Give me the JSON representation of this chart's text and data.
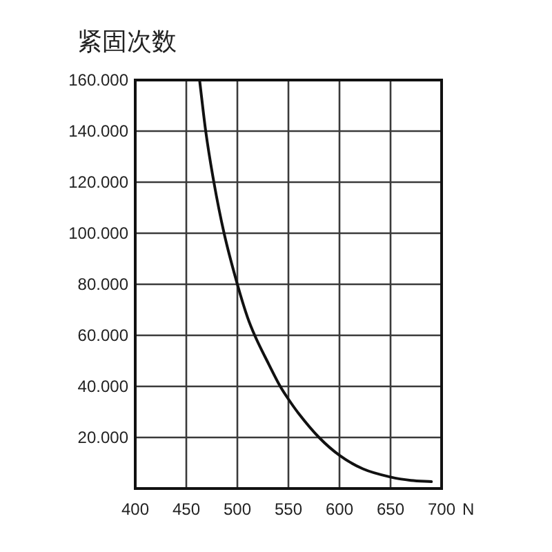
{
  "chart_data": {
    "type": "line",
    "ylabel": "紧固次数",
    "xlabel": "N",
    "x": [
      463,
      469,
      477,
      487,
      500,
      510,
      517,
      531,
      542,
      550,
      560,
      580,
      600,
      623,
      650,
      670,
      690
    ],
    "series": [
      {
        "color": "#111111",
        "values": [
          160000,
          140000,
          120000,
          100000,
          80000,
          67000,
          60000,
          48500,
          40000,
          35000,
          29400,
          20000,
          13000,
          7700,
          4500,
          3200,
          2700
        ]
      }
    ],
    "xlim": [
      400,
      700
    ],
    "xticks": [
      400,
      450,
      500,
      550,
      600,
      650,
      700
    ],
    "ylim": [
      0,
      160000
    ],
    "yticks": [
      {
        "value": 20000,
        "label": "20.000"
      },
      {
        "value": 40000,
        "label": "40.000"
      },
      {
        "value": 60000,
        "label": "60.000"
      },
      {
        "value": 80000,
        "label": "80.000"
      },
      {
        "value": 100000,
        "label": "100.000"
      },
      {
        "value": 120000,
        "label": "120.000"
      },
      {
        "value": 140000,
        "label": "140.000"
      },
      {
        "value": 160000,
        "label": "160.000"
      }
    ],
    "grid": true,
    "line_style": "solid"
  }
}
